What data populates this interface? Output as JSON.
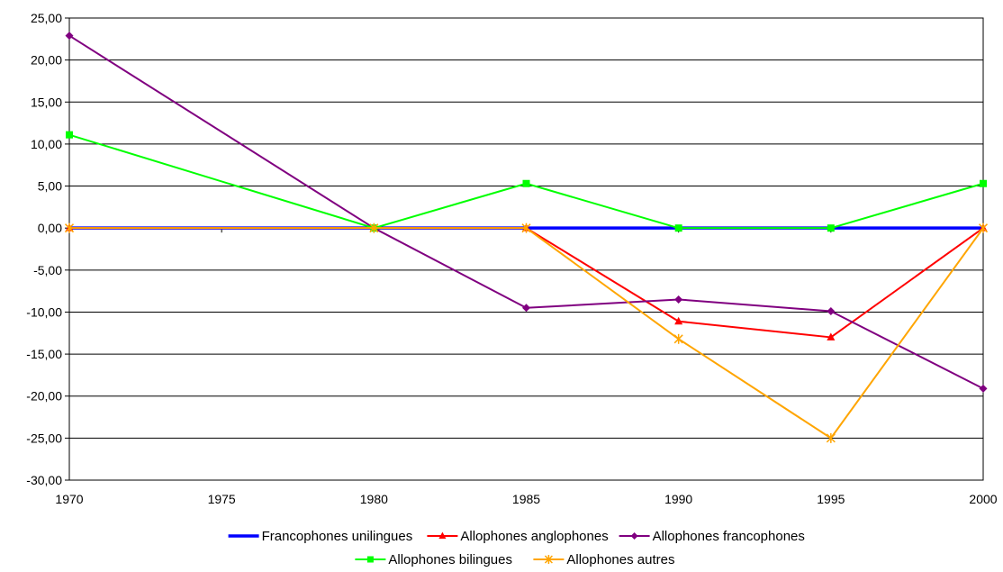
{
  "chart_data": {
    "type": "line",
    "title": "",
    "xlabel": "",
    "ylabel": "",
    "x": [
      1970,
      1975,
      1980,
      1985,
      1990,
      1995,
      2000
    ],
    "x_tick_labels": [
      "1970",
      "1975",
      "1980",
      "1985",
      "1990",
      "1995",
      "2000"
    ],
    "xlim": [
      1970,
      2000
    ],
    "ylim": [
      -30,
      25
    ],
    "y_ticks": [
      25,
      20,
      15,
      10,
      5,
      0,
      -5,
      -10,
      -15,
      -20,
      -25,
      -30
    ],
    "y_tick_labels": [
      "25,00",
      "20,00",
      "15,00",
      "10,00",
      "5,00",
      "0,00",
      "-5,00",
      "-10,00",
      "-15,00",
      "-20,00",
      "-25,00",
      "-30,00"
    ],
    "grid": "horizontal",
    "legend_placement": "bottom",
    "series": [
      {
        "name": "Francophones unilingues",
        "color": "#0000ff",
        "marker": "none",
        "points": [
          [
            1970,
            0
          ],
          [
            1980,
            0
          ],
          [
            1985,
            0
          ],
          [
            1990,
            0
          ],
          [
            1995,
            0
          ],
          [
            2000,
            0
          ]
        ]
      },
      {
        "name": "Allophones anglophones",
        "color": "#ff0000",
        "marker": "triangle",
        "points": [
          [
            1970,
            0
          ],
          [
            1980,
            0
          ],
          [
            1985,
            0
          ],
          [
            1990,
            -11.1
          ],
          [
            1995,
            -13.0
          ],
          [
            2000,
            0
          ]
        ]
      },
      {
        "name": "Allophones francophones",
        "color": "#800080",
        "marker": "diamond",
        "points": [
          [
            1970,
            22.9
          ],
          [
            1980,
            0
          ],
          [
            1985,
            -9.5
          ],
          [
            1990,
            -8.5
          ],
          [
            1995,
            -9.9
          ],
          [
            2000,
            -19.1
          ]
        ]
      },
      {
        "name": "Allophones bilingues",
        "color": "#00ff00",
        "marker": "square",
        "points": [
          [
            1970,
            11.1
          ],
          [
            1980,
            0
          ],
          [
            1985,
            5.3
          ],
          [
            1990,
            0
          ],
          [
            1995,
            0
          ],
          [
            2000,
            5.3
          ]
        ]
      },
      {
        "name": "Allophones autres",
        "color": "#ffa500",
        "marker": "star",
        "points": [
          [
            1970,
            0
          ],
          [
            1980,
            0
          ],
          [
            1985,
            0
          ],
          [
            1990,
            -13.2
          ],
          [
            1995,
            -25.0
          ],
          [
            2000,
            0
          ]
        ]
      }
    ]
  }
}
